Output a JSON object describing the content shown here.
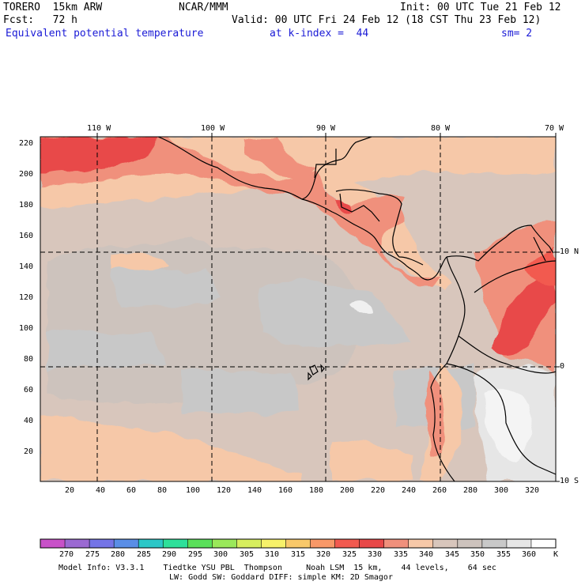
{
  "header": {
    "model": "TORERO  15km ARW",
    "org": "NCAR/MMM",
    "init": "Init: 00 UTC Tue 21 Feb 12",
    "fcst": "Fcst:   72 h",
    "valid": "Valid: 00 UTC Fri 24 Feb 12 (18 CST Thu 23 Feb 12)",
    "field": "Equivalent potential temperature",
    "level": "at k-index =  44",
    "smooth": "sm= 2"
  },
  "map": {
    "top_lon_labels": [
      "110 W",
      "100 W",
      "90 W",
      "80 W",
      "70 W"
    ],
    "right_lat_labels": [
      "10 N",
      "0",
      "10 S"
    ],
    "y_grid_labels": [
      "220",
      "200",
      "180",
      "160",
      "140",
      "120",
      "100",
      "80",
      "60",
      "40",
      "20"
    ],
    "x_grid_labels": [
      "20",
      "40",
      "60",
      "80",
      "100",
      "120",
      "140",
      "160",
      "180",
      "200",
      "220",
      "240",
      "260",
      "280",
      "300",
      "320"
    ]
  },
  "colorbar": {
    "colors": [
      "#c851c8",
      "#9b6ad2",
      "#7474e6",
      "#5a8ee6",
      "#2cc7c7",
      "#2ee09a",
      "#5ae05a",
      "#9ae85a",
      "#d7ee5e",
      "#f7f16a",
      "#f8c86a",
      "#f89868",
      "#f25a50",
      "#e84848",
      "#f0907c",
      "#f6c8a8",
      "#d8c6bc",
      "#cdc3bd",
      "#c8c8c8",
      "#e6e6e6",
      "#ffffff"
    ],
    "labels": [
      "270",
      "275",
      "280",
      "285",
      "290",
      "295",
      "300",
      "305",
      "310",
      "315",
      "320",
      "325",
      "330",
      "335",
      "340",
      "345",
      "350",
      "355",
      "360",
      "K"
    ]
  },
  "footer": {
    "line1": "Model Info: V3.3.1    Tiedtke YSU PBL  Thompson     Noah LSM  15 km,    44 levels,    64 sec",
    "line2": "LW: Godd SW: Goddard DIFF: simple KM: 2D Smagor"
  }
}
